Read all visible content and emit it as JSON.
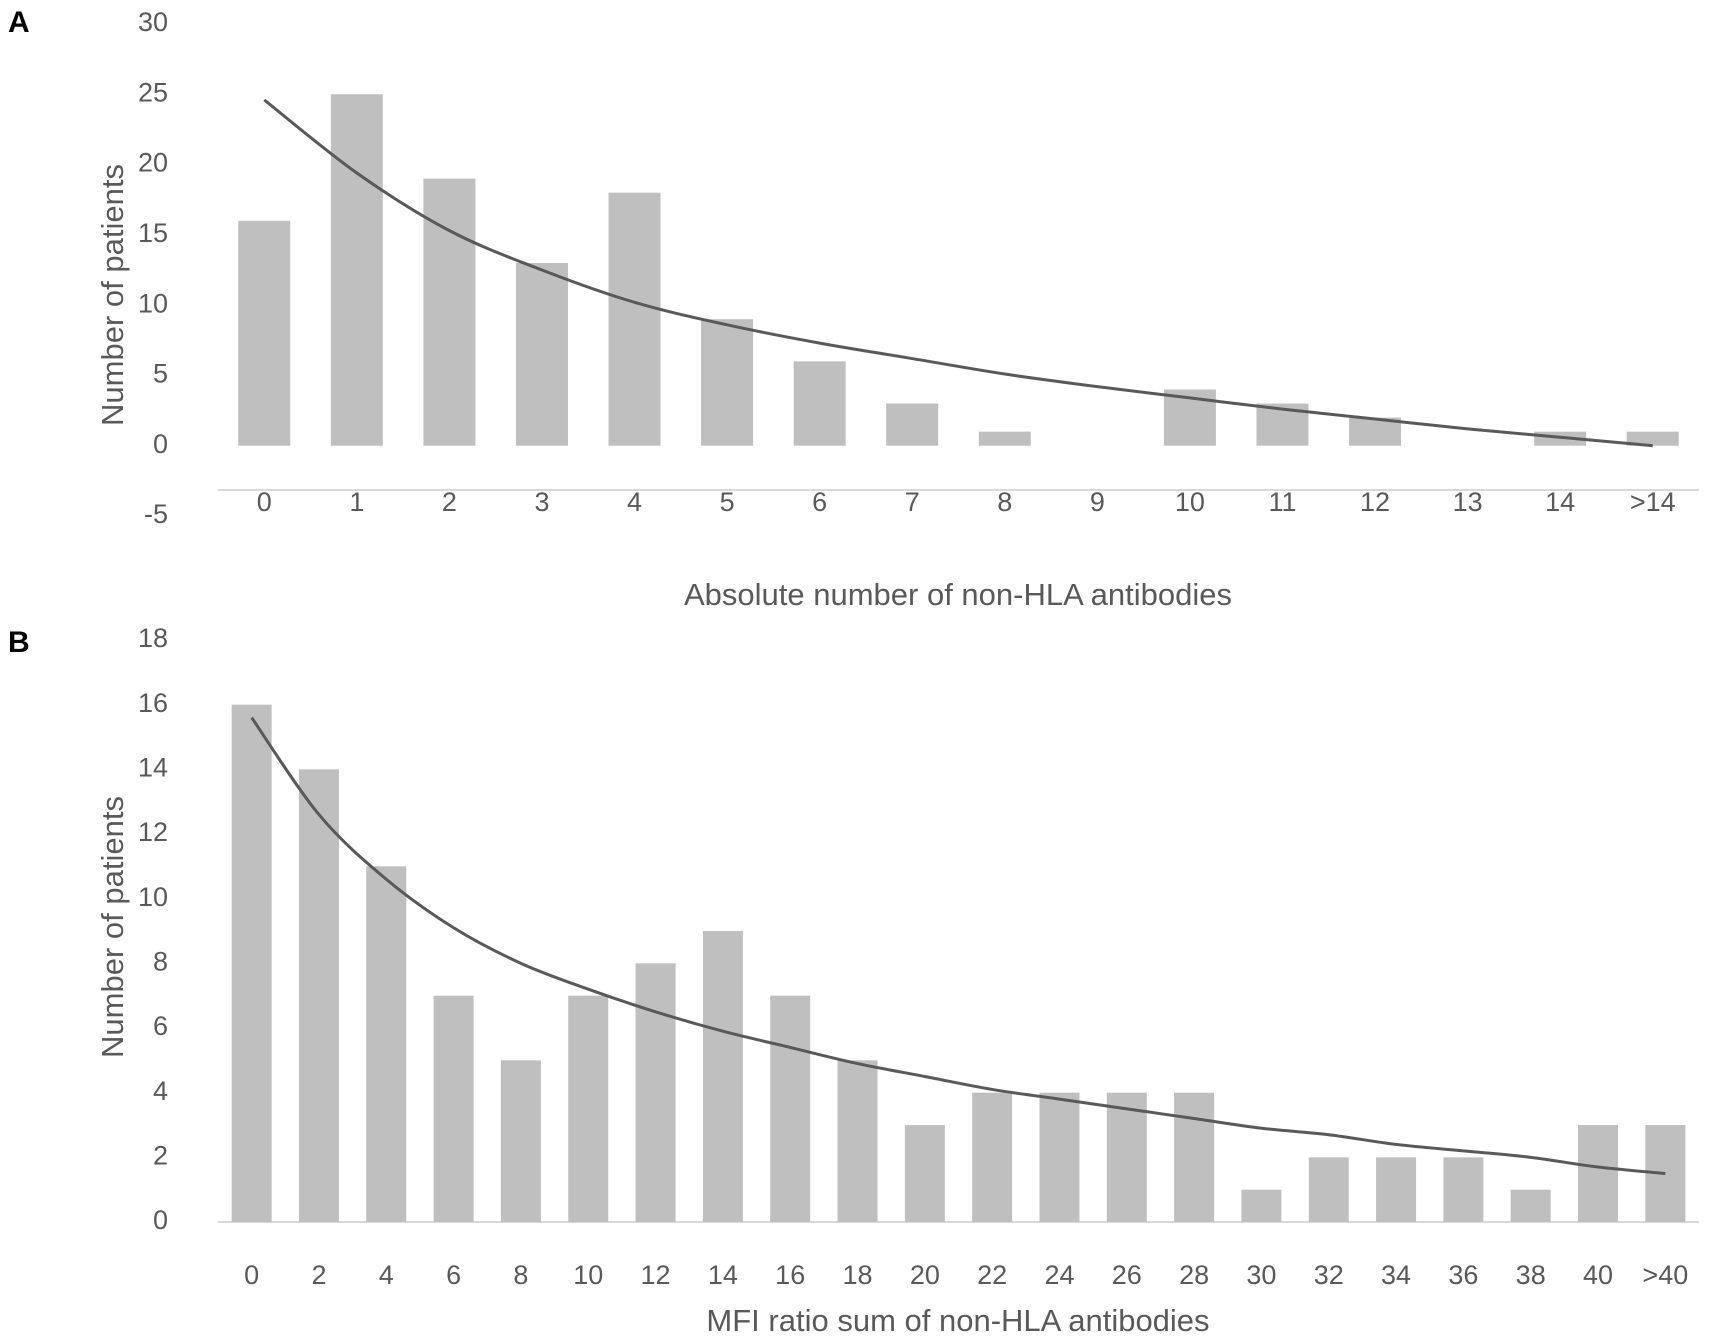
{
  "chart_data": [
    {
      "panel": "A",
      "type": "bar",
      "categories": [
        "0",
        "1",
        "2",
        "3",
        "4",
        "5",
        "6",
        "7",
        "8",
        "9",
        "10",
        "11",
        "12",
        "13",
        "14",
        ">14"
      ],
      "values": [
        16,
        25,
        19,
        13,
        18,
        9,
        6,
        3,
        1,
        0,
        4,
        3,
        2,
        0,
        1,
        1
      ],
      "trendline": {
        "type": "exponential",
        "values": [
          24.6,
          19.4,
          15.3,
          12.5,
          10.2,
          8.6,
          7.3,
          6.2,
          5.1,
          4.2,
          3.4,
          2.6,
          1.9,
          1.2,
          0.6,
          0
        ]
      },
      "xlabel": "Absolute number of non-HLA antibodies",
      "ylabel": "Number of patients",
      "ylim": [
        -5,
        30
      ],
      "yticks": [
        "-5",
        "0",
        "5",
        "10",
        "15",
        "20",
        "25",
        "30"
      ],
      "grid": false,
      "bar_color": "#bfbfbf",
      "line_color": "#595959"
    },
    {
      "panel": "B",
      "type": "bar",
      "categories": [
        "0",
        "2",
        "4",
        "6",
        "8",
        "10",
        "12",
        "14",
        "16",
        "18",
        "20",
        "22",
        "24",
        "26",
        "28",
        "30",
        "32",
        "34",
        "36",
        "38",
        "40",
        ">40"
      ],
      "values": [
        16,
        14,
        11,
        7,
        5,
        7,
        8,
        9,
        7,
        5,
        3,
        4,
        4,
        4,
        4,
        1,
        2,
        2,
        2,
        1,
        3,
        3
      ],
      "trendline": {
        "type": "exponential",
        "values": [
          15.6,
          12.6,
          10.6,
          9.1,
          8.0,
          7.2,
          6.5,
          5.9,
          5.4,
          4.9,
          4.5,
          4.1,
          3.8,
          3.5,
          3.2,
          2.9,
          2.7,
          2.4,
          2.2,
          2.0,
          1.7,
          1.5
        ]
      },
      "xlabel": "MFI ratio sum of non-HLA antibodies",
      "ylabel": "Number of patients",
      "ylim": [
        0,
        18
      ],
      "yticks": [
        "0",
        "2",
        "4",
        "6",
        "8",
        "10",
        "12",
        "14",
        "16",
        "18"
      ],
      "grid": false,
      "bar_color": "#bfbfbf",
      "line_color": "#595959"
    }
  ]
}
